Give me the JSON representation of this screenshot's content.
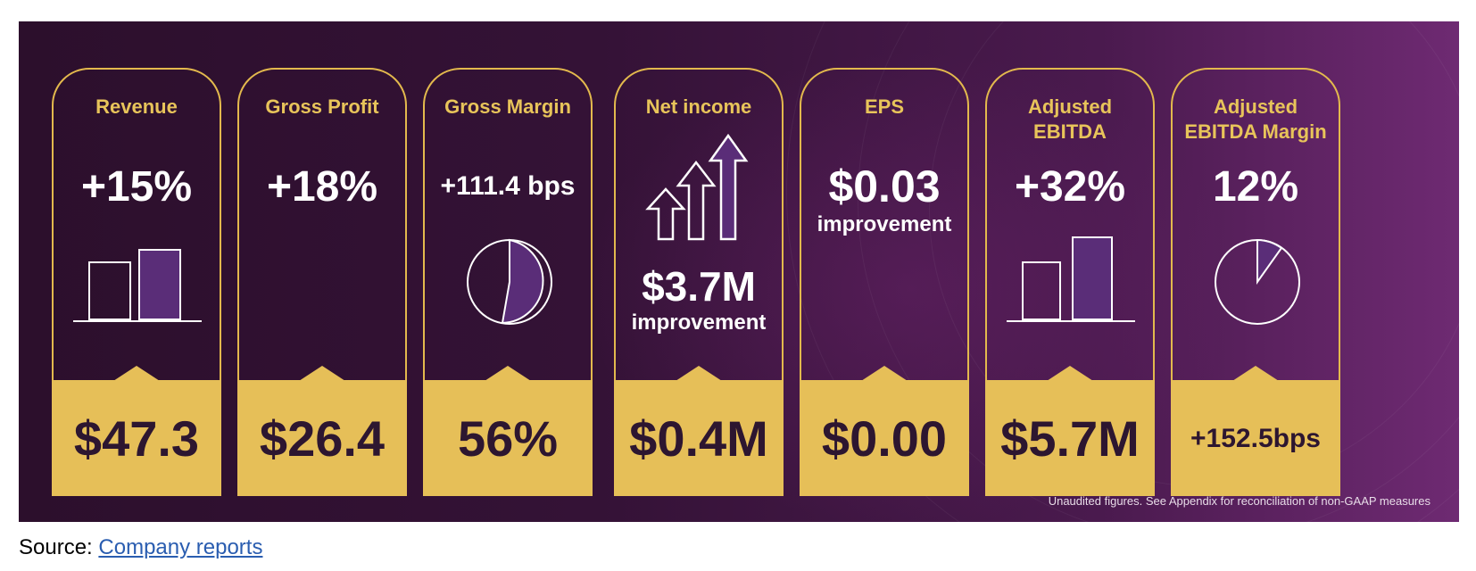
{
  "cards": [
    {
      "title": "Revenue",
      "metric": "+15%",
      "value": "$47.3"
    },
    {
      "title": "Gross Profit",
      "metric": "+18%",
      "value": "$26.4"
    },
    {
      "title": "Gross Margin",
      "metric": "+111.4 bps",
      "value": "56%"
    },
    {
      "title": "Net income",
      "metric": "$3.7M",
      "metric_sub": "improvement",
      "value": "$0.4M"
    },
    {
      "title": "EPS",
      "metric": "$0.03",
      "metric_sub": "improvement",
      "value": "$0.00"
    },
    {
      "title": "Adjusted\nEBITDA",
      "metric": "+32%",
      "value": "$5.7M"
    },
    {
      "title": "Adjusted\nEBITDA Margin",
      "metric": "12%",
      "value": "+152.5bps"
    }
  ],
  "footnote": "Unaudited figures. See Appendix for reconciliation of non-GAAP measures",
  "source": {
    "prefix": "Source: ",
    "link_text": "Company reports"
  },
  "colors": {
    "gold": "#e6bf58",
    "purple_dark": "#2c0f2c",
    "purple_fill": "#5a2d78",
    "text_dark": "#2d1630"
  }
}
